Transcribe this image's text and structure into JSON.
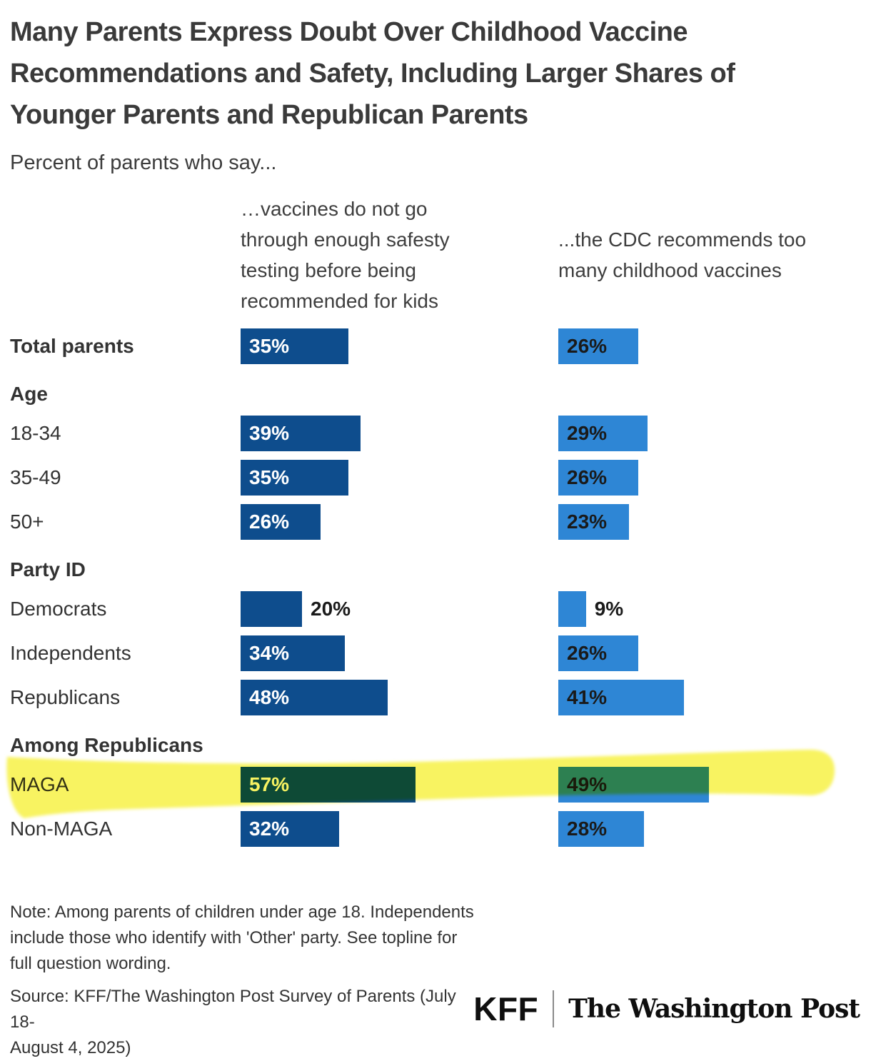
{
  "header": {
    "title_lines": [
      "Many Parents Express Doubt Over Childhood Vaccine",
      "Recommendations and Safety, Including Larger Shares of",
      "Younger Parents and Republican Parents"
    ],
    "subtitle": "Percent of parents who say..."
  },
  "chart_data": {
    "type": "bar",
    "unit": "%",
    "orientation": "horizontal",
    "columns": [
      {
        "id": "safety",
        "header": "…vaccines do not go\nthrough enough safesty\ntesting before being\nrecommended for kids",
        "color": "#0E4D8D",
        "label_color_inside": "#FFFFFF"
      },
      {
        "id": "cdc",
        "header": "...the CDC recommends too\nmany childhood vaccines",
        "color": "#2E86D5",
        "label_color_inside": "#1A1A1A"
      }
    ],
    "rows": [
      {
        "kind": "data",
        "label": "Total parents",
        "bold": true,
        "values": [
          35,
          26
        ]
      },
      {
        "kind": "section",
        "label": "Age"
      },
      {
        "kind": "data",
        "label": "18-34",
        "values": [
          39,
          29
        ]
      },
      {
        "kind": "data",
        "label": "35-49",
        "values": [
          35,
          26
        ]
      },
      {
        "kind": "data",
        "label": "50+",
        "values": [
          26,
          23
        ]
      },
      {
        "kind": "section",
        "label": "Party ID"
      },
      {
        "kind": "data",
        "label": "Democrats",
        "values": [
          20,
          9
        ],
        "labels_outside": true
      },
      {
        "kind": "data",
        "label": "Independents",
        "values": [
          34,
          26
        ]
      },
      {
        "kind": "data",
        "label": "Republicans",
        "values": [
          48,
          41
        ]
      },
      {
        "kind": "section",
        "label": "Among Republicans"
      },
      {
        "kind": "data",
        "label": "MAGA",
        "values": [
          57,
          49
        ],
        "highlighted": true
      },
      {
        "kind": "data",
        "label": "Non-MAGA",
        "values": [
          32,
          28
        ]
      }
    ],
    "highlight": {
      "row": "MAGA",
      "color": "#F8F258",
      "style": "hand-drawn marker stroke across full row width"
    }
  },
  "footer": {
    "note": "Note: Among parents of children under age 18. Independents\ninclude those who identify with 'Other' party. See topline for\nfull question wording.",
    "source": "Source: KFF/The Washington Post Survey of Parents (July 18-\nAugust 4, 2025)",
    "logos": {
      "kff": "KFF",
      "wapo": "The Washington Post"
    }
  }
}
